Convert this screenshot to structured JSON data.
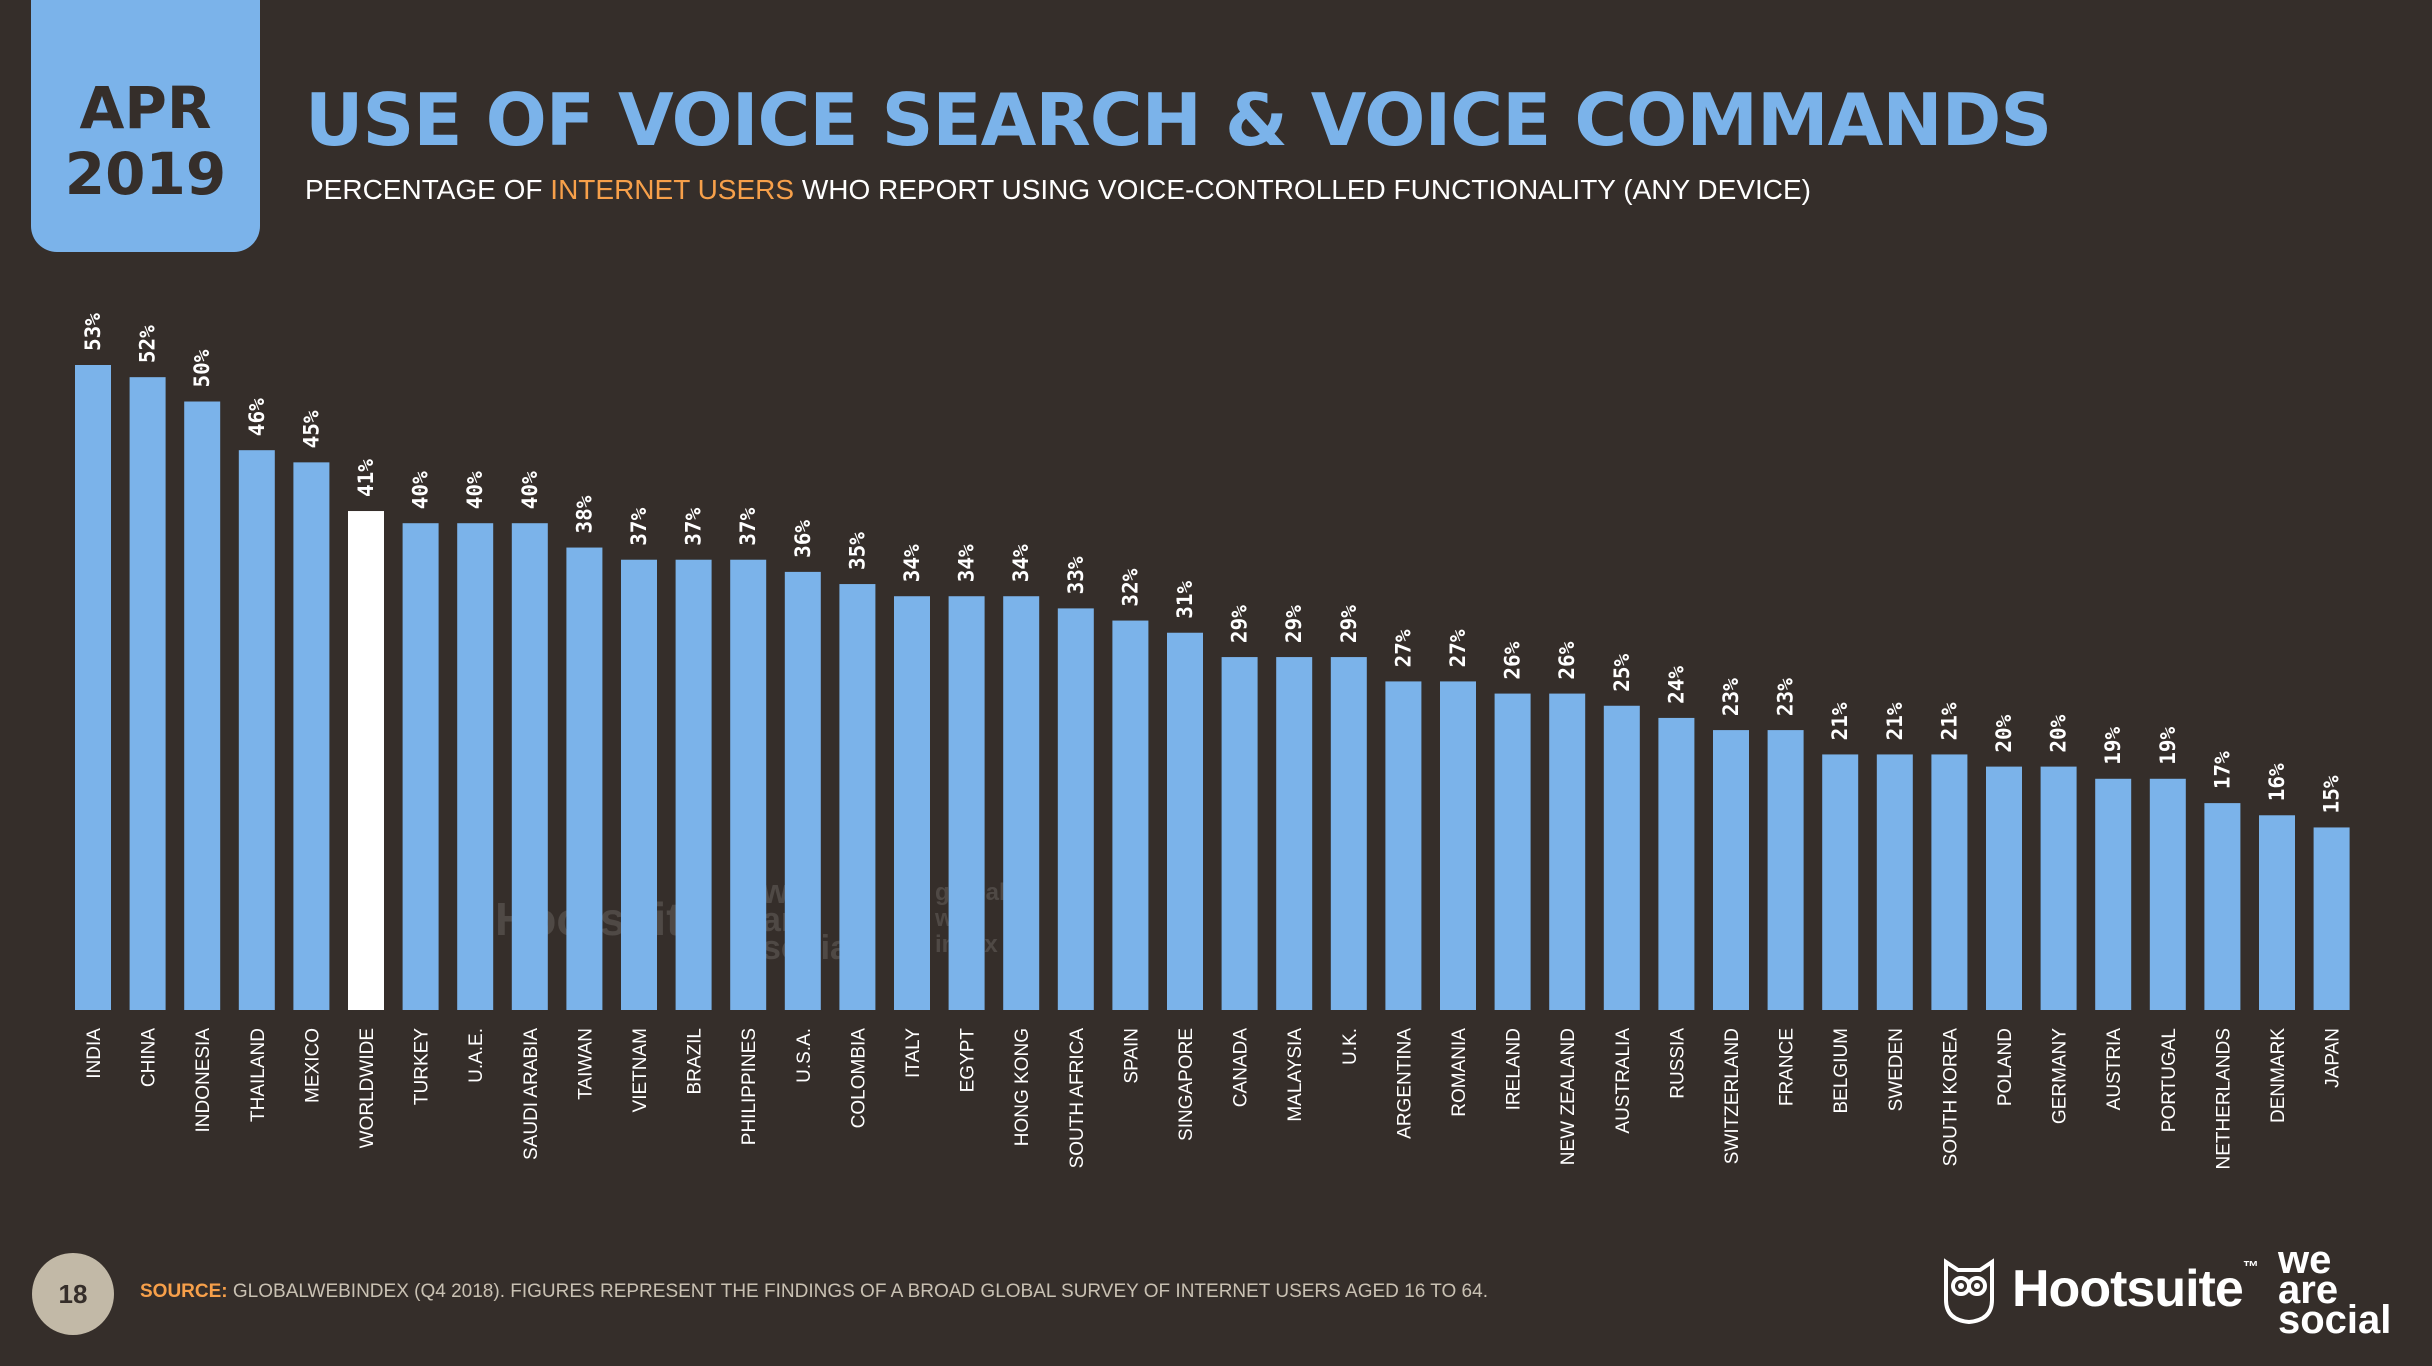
{
  "header": {
    "date_month": "APR",
    "date_year": "2019",
    "title": "USE OF VOICE SEARCH & VOICE COMMANDS",
    "subtitle_pre": "PERCENTAGE OF ",
    "subtitle_highlight": "INTERNET USERS",
    "subtitle_post": " WHO REPORT USING VOICE-CONTROLLED FUNCTIONALITY (ANY DEVICE)"
  },
  "footer": {
    "page_number": "18",
    "source_label": "SOURCE:",
    "source_text": " GLOBALWEBINDEX (Q4 2018). FIGURES REPRESENT THE FINDINGS OF A BROAD GLOBAL SURVEY OF INTERNET USERS AGED 16 TO 64.",
    "logo_hootsuite": "Hootsuite",
    "logo_tm": "™",
    "logo_we_are_social": [
      "we",
      "are",
      "social"
    ]
  },
  "watermarks": {
    "hootsuite": "Hootsuite",
    "we_are_social": [
      "we",
      "are",
      "social"
    ],
    "globalwebindex": [
      "global",
      "web",
      "index"
    ]
  },
  "colors": {
    "background": "#352e2a",
    "accent": "#7bb3ea",
    "highlight_bar": "#ffffff",
    "highlight_text": "#f7a04a"
  },
  "chart_data": {
    "type": "bar",
    "categories": [
      "INDIA",
      "CHINA",
      "INDONESIA",
      "THAILAND",
      "MEXICO",
      "WORLDWIDE",
      "TURKEY",
      "U.A.E.",
      "SAUDI ARABIA",
      "TAIWAN",
      "VIETNAM",
      "BRAZIL",
      "PHILIPPINES",
      "U.S.A.",
      "COLOMBIA",
      "ITALY",
      "EGYPT",
      "HONG KONG",
      "SOUTH AFRICA",
      "SPAIN",
      "SINGAPORE",
      "CANADA",
      "MALAYSIA",
      "U.K.",
      "ARGENTINA",
      "ROMANIA",
      "IRELAND",
      "NEW ZEALAND",
      "AUSTRALIA",
      "RUSSIA",
      "SWITZERLAND",
      "FRANCE",
      "BELGIUM",
      "SWEDEN",
      "SOUTH KOREA",
      "POLAND",
      "GERMANY",
      "AUSTRIA",
      "PORTUGAL",
      "NETHERLANDS",
      "DENMARK",
      "JAPAN"
    ],
    "values": [
      53,
      52,
      50,
      46,
      45,
      41,
      40,
      40,
      40,
      38,
      37,
      37,
      37,
      36,
      35,
      34,
      34,
      34,
      33,
      32,
      31,
      29,
      29,
      29,
      27,
      27,
      26,
      26,
      25,
      24,
      23,
      23,
      21,
      21,
      21,
      20,
      20,
      19,
      19,
      17,
      16,
      15
    ],
    "value_labels": [
      "53%",
      "52%",
      "50%",
      "46%",
      "45%",
      "41%",
      "40%",
      "40%",
      "40%",
      "38%",
      "37%",
      "37%",
      "37%",
      "36%",
      "35%",
      "34%",
      "34%",
      "34%",
      "33%",
      "32%",
      "31%",
      "29%",
      "29%",
      "29%",
      "27%",
      "27%",
      "26%",
      "26%",
      "25%",
      "24%",
      "23%",
      "23%",
      "21%",
      "21%",
      "21%",
      "20%",
      "20%",
      "19%",
      "19%",
      "17%",
      "16%",
      "15%"
    ],
    "highlight_category": "WORLDWIDE",
    "ylim": [
      0,
      53
    ],
    "grid": false,
    "legend": "none"
  }
}
